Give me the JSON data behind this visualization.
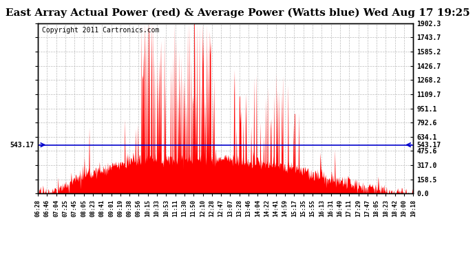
{
  "title": "East Array Actual Power (red) & Average Power (Watts blue) Wed Aug 17 19:25",
  "copyright": "Copyright 2011 Cartronics.com",
  "avg_power": 543.17,
  "ymax": 1902.3,
  "ymin": 0.0,
  "yticks": [
    0.0,
    158.5,
    317.0,
    475.6,
    634.1,
    792.6,
    951.1,
    1109.7,
    1268.2,
    1426.7,
    1585.2,
    1743.7,
    1902.3
  ],
  "avg_label": "543.17",
  "bg_color": "#ffffff",
  "fill_color": "#ff0000",
  "line_color": "#0000cc",
  "grid_color": "#bbbbbb",
  "title_fontsize": 11,
  "copyright_fontsize": 7,
  "x_tick_labels": [
    "06:28",
    "06:46",
    "07:04",
    "07:25",
    "07:45",
    "08:05",
    "08:23",
    "08:41",
    "09:01",
    "09:19",
    "09:38",
    "09:56",
    "10:15",
    "10:33",
    "10:53",
    "11:11",
    "11:30",
    "11:50",
    "12:10",
    "12:28",
    "12:47",
    "13:07",
    "13:28",
    "13:46",
    "14:04",
    "14:22",
    "14:41",
    "14:59",
    "15:17",
    "15:35",
    "15:55",
    "16:13",
    "16:31",
    "16:49",
    "17:11",
    "17:29",
    "17:47",
    "18:05",
    "18:23",
    "18:42",
    "19:00",
    "19:18"
  ]
}
